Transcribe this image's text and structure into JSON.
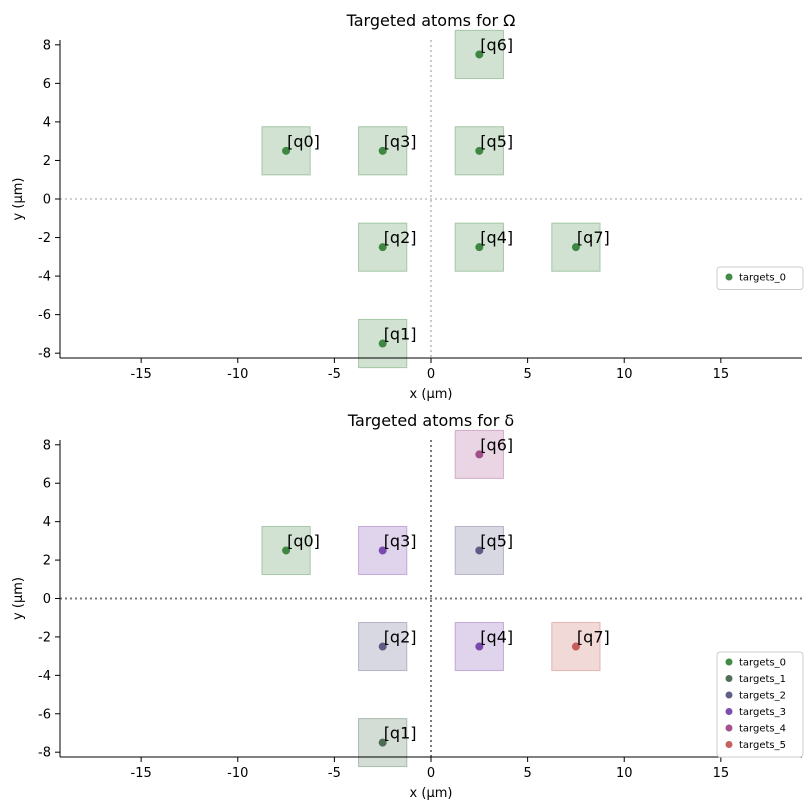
{
  "chart_data": [
    {
      "type": "scatter",
      "title": "Targeted atoms for Ω",
      "xlabel": "x (μm)",
      "ylabel": "y (μm)",
      "xlim": [
        -19.2,
        19.2
      ],
      "ylim": [
        -8.25,
        8.25
      ],
      "x_ticks": [
        -15,
        -10,
        -5,
        0,
        5,
        10,
        15
      ],
      "y_ticks": [
        -8,
        -6,
        -4,
        -2,
        0,
        2,
        4,
        6,
        8
      ],
      "grid": false,
      "crosshair_style": "light",
      "legend_placement": "right",
      "atom_box_size": 2.5,
      "atoms": [
        {
          "label": "[q0]",
          "x": -7.5,
          "y": 2.5,
          "target": 0
        },
        {
          "label": "[q1]",
          "x": -2.5,
          "y": -7.5,
          "target": 0
        },
        {
          "label": "[q2]",
          "x": -2.5,
          "y": -2.5,
          "target": 0
        },
        {
          "label": "[q3]",
          "x": -2.5,
          "y": 2.5,
          "target": 0
        },
        {
          "label": "[q4]",
          "x": 2.5,
          "y": -2.5,
          "target": 0
        },
        {
          "label": "[q5]",
          "x": 2.5,
          "y": 2.5,
          "target": 0
        },
        {
          "label": "[q6]",
          "x": 2.5,
          "y": 7.5,
          "target": 0
        },
        {
          "label": "[q7]",
          "x": 7.5,
          "y": -2.5,
          "target": 0
        }
      ],
      "series": [
        {
          "name": "targets_0",
          "color": "#2e7d32"
        }
      ]
    },
    {
      "type": "scatter",
      "title": "Targeted atoms for δ",
      "xlabel": "x (μm)",
      "ylabel": "y (μm)",
      "xlim": [
        -19.2,
        19.2
      ],
      "ylim": [
        -8.25,
        8.25
      ],
      "x_ticks": [
        -15,
        -10,
        -5,
        0,
        5,
        10,
        15
      ],
      "y_ticks": [
        -8,
        -6,
        -4,
        -2,
        0,
        2,
        4,
        6,
        8
      ],
      "grid": false,
      "crosshair_style": "dark",
      "legend_placement": "bottom-right",
      "atom_box_size": 2.5,
      "atoms": [
        {
          "label": "[q0]",
          "x": -7.5,
          "y": 2.5,
          "target": 0
        },
        {
          "label": "[q1]",
          "x": -2.5,
          "y": -7.5,
          "target": 1
        },
        {
          "label": "[q2]",
          "x": -2.5,
          "y": -2.5,
          "target": 2
        },
        {
          "label": "[q3]",
          "x": -2.5,
          "y": 2.5,
          "target": 3
        },
        {
          "label": "[q4]",
          "x": 2.5,
          "y": -2.5,
          "target": 3
        },
        {
          "label": "[q5]",
          "x": 2.5,
          "y": 2.5,
          "target": 2
        },
        {
          "label": "[q6]",
          "x": 2.5,
          "y": 7.5,
          "target": 4
        },
        {
          "label": "[q7]",
          "x": 7.5,
          "y": -2.5,
          "target": 5
        }
      ],
      "series": [
        {
          "name": "targets_0",
          "color": "#2e7d32"
        },
        {
          "name": "targets_1",
          "color": "#3d5f45"
        },
        {
          "name": "targets_2",
          "color": "#4f4f7a"
        },
        {
          "name": "targets_3",
          "color": "#6f3aa6"
        },
        {
          "name": "targets_4",
          "color": "#9a3f7f"
        },
        {
          "name": "targets_5",
          "color": "#c0504d"
        }
      ]
    }
  ]
}
